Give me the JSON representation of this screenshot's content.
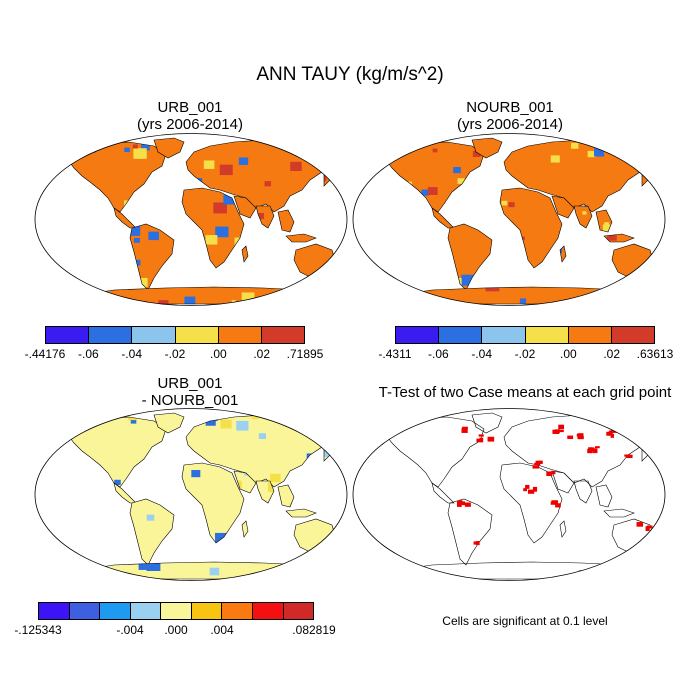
{
  "main_title": "ANN TAUY (kg/m/s^2)",
  "panels": {
    "urb": {
      "title_line1": "URB_001",
      "title_line2": "(yrs 2006-2014)",
      "colorbar_colors": [
        "#3b1cf0",
        "#2b6fe0",
        "#8cc4ee",
        "#f5e04a",
        "#f57a12",
        "#d23a2a"
      ],
      "colorbar_labels": [
        "-.44176",
        "-.06",
        "-.04",
        "-.02",
        ".00",
        ".02",
        ".71895"
      ]
    },
    "nourb": {
      "title_line1": "NOURB_001",
      "title_line2": "(yrs 2006-2014)",
      "colorbar_colors": [
        "#3b1cf0",
        "#2b6fe0",
        "#8cc4ee",
        "#f5e04a",
        "#f57a12",
        "#d23a2a"
      ],
      "colorbar_labels": [
        "-.4311",
        "-.06",
        "-.04",
        "-.02",
        ".00",
        ".02",
        ".63613"
      ]
    },
    "diff": {
      "title_line1": "URB_001",
      "title_line2": "- NOURB_001",
      "colorbar_colors": [
        "#3c14f5",
        "#3d5fe0",
        "#1e9bf0",
        "#9ad0f0",
        "#fbf59a",
        "#f8c414",
        "#f87a10",
        "#f41010",
        "#d12828"
      ],
      "colorbar_labels": [
        "-.125343",
        "-.004",
        ".000",
        ".004",
        ".082819"
      ]
    },
    "ttest": {
      "title": "T-Test of two Case means at each grid point",
      "note": "Cells are significant at 0.1 level",
      "significant_color": "#ee0000"
    }
  },
  "map_colors": {
    "dominant_urb": [
      "#f57a12",
      "#f5e04a",
      "#d23a2a"
    ],
    "dominant_diff": [
      "#fbf59a",
      "#9ad0f0",
      "#2b6fe0"
    ]
  }
}
